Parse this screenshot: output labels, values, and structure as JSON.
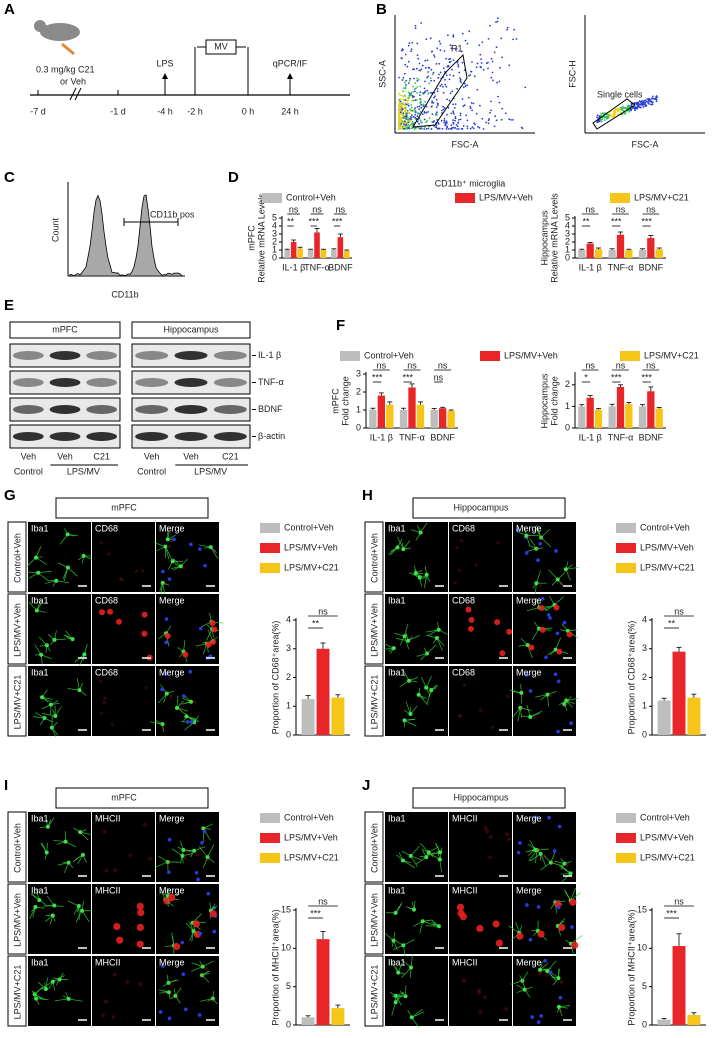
{
  "panel_labels": [
    "A",
    "B",
    "C",
    "D",
    "E",
    "F",
    "G",
    "H",
    "I",
    "J"
  ],
  "panel_a": {
    "dose": [
      "0.3 mg/kg C21",
      "or Veh"
    ],
    "lps": "LPS",
    "mv": "MV",
    "readout": "qPCR/IF",
    "times": [
      "-7 d",
      "-1 d",
      "-4 h",
      "-2 h",
      "0 h",
      "24 h"
    ]
  },
  "panel_b": {
    "plots": [
      {
        "ylabel": "SSC-A",
        "xlabel": "FSC-A",
        "gate": "R1"
      },
      {
        "ylabel": "FSC-H",
        "xlabel": "FSC-A",
        "gate": "Single cells"
      }
    ]
  },
  "panel_c": {
    "ylabel": "Count",
    "xlabel": "CD11b",
    "gate": "CD11b pos"
  },
  "panel_e": {
    "regions": [
      "mPFC",
      "Hippocampus"
    ],
    "proteins": [
      "IL-1 β",
      "TNF-α",
      "BDNF",
      "β-actin"
    ],
    "lanes": [
      "Veh",
      "Veh",
      "C21"
    ],
    "groups": [
      "Control",
      "LPS/MV"
    ]
  },
  "image_panels": [
    {
      "title": "mPFC",
      "rows": [
        "Control+Veh",
        "LPS/MV+Veh",
        "LPS/MV+C21"
      ],
      "channels": [
        "Iba1",
        "CD68",
        "Merge"
      ]
    },
    {
      "title": "Hippocampus",
      "rows": [
        "Control+Veh",
        "LPS/MV+Veh",
        "LPS/MV+C21"
      ],
      "channels": [
        "Iba1",
        "CD68",
        "Merge"
      ]
    },
    {
      "title": "mPFC",
      "rows": [
        "Control+Veh",
        "LPS/MV+Veh",
        "LPS/MV+C21"
      ],
      "channels": [
        "Iba1",
        "MHCII",
        "Merge"
      ]
    },
    {
      "title": "Hippocampus",
      "rows": [
        "Control+Veh",
        "LPS/MV+Veh",
        "LPS/MV+C21"
      ],
      "channels": [
        "Iba1",
        "MHCII",
        "Merge"
      ]
    }
  ],
  "chart_data": [
    {
      "type": "bar",
      "title": "CD11b⁺ microglia",
      "ylabel": [
        "mPFC",
        "Relative mRNA Levels"
      ],
      "categories": [
        "IL-1 β",
        "TNF-α",
        "BDNF"
      ],
      "series": [
        {
          "name": "Control+Veh",
          "color": "#bdbdbd",
          "values": [
            1,
            1,
            1
          ],
          "errors": [
            0.1,
            0.1,
            0.15
          ]
        },
        {
          "name": "LPS/MV+Veh",
          "color": "#e8262a",
          "values": [
            2.0,
            3.2,
            2.6
          ],
          "errors": [
            0.25,
            0.5,
            0.4
          ]
        },
        {
          "name": "LPS/MV+C21",
          "color": "#f5c518",
          "values": [
            1.2,
            1.0,
            0.9
          ],
          "errors": [
            0.15,
            0.1,
            0.1
          ]
        }
      ],
      "ylim": [
        0,
        5
      ],
      "yticks": [
        0,
        1,
        2,
        3,
        4,
        5
      ],
      "significance": [
        [
          "ns",
          "**"
        ],
        [
          "ns",
          "***"
        ],
        [
          "ns",
          "***"
        ]
      ]
    },
    {
      "type": "bar",
      "ylabel": [
        "Hippocampus",
        "Relative mRNA Levels"
      ],
      "categories": [
        "IL-1 β",
        "TNF-α",
        "BDNF"
      ],
      "series": [
        {
          "name": "Control+Veh",
          "color": "#bdbdbd",
          "values": [
            1,
            1,
            1
          ],
          "errors": [
            0.1,
            0.15,
            0.15
          ]
        },
        {
          "name": "LPS/MV+Veh",
          "color": "#e8262a",
          "values": [
            1.8,
            2.9,
            2.5
          ],
          "errors": [
            0.15,
            0.35,
            0.3
          ]
        },
        {
          "name": "LPS/MV+C21",
          "color": "#f5c518",
          "values": [
            1.1,
            1.0,
            1.1
          ],
          "errors": [
            0.15,
            0.1,
            0.15
          ]
        }
      ],
      "ylim": [
        0,
        5
      ],
      "yticks": [
        0,
        1,
        2,
        3,
        4,
        5
      ],
      "significance": [
        [
          "ns",
          "**"
        ],
        [
          "ns",
          "***"
        ],
        [
          "ns",
          "***"
        ]
      ]
    },
    {
      "type": "bar",
      "ylabel": [
        "mPFC",
        "Fold change"
      ],
      "categories": [
        "IL-1 β",
        "TNF-α",
        "BDNF"
      ],
      "series": [
        {
          "name": "Control+Veh",
          "color": "#bdbdbd",
          "values": [
            1,
            1,
            1
          ],
          "errors": [
            0.1,
            0.1,
            0.08
          ]
        },
        {
          "name": "LPS/MV+Veh",
          "color": "#e8262a",
          "values": [
            1.8,
            2.25,
            1.1
          ],
          "errors": [
            0.15,
            0.2,
            0.05
          ]
        },
        {
          "name": "LPS/MV+C21",
          "color": "#f5c518",
          "values": [
            1.3,
            1.3,
            0.95
          ],
          "errors": [
            0.15,
            0.15,
            0.05
          ]
        }
      ],
      "ylim": [
        0,
        3
      ],
      "yticks": [
        0,
        1,
        2,
        3
      ],
      "significance": [
        [
          "ns",
          "***"
        ],
        [
          "ns",
          "***"
        ],
        [
          "ns",
          "ns"
        ]
      ]
    },
    {
      "type": "bar",
      "ylabel": [
        "Hippocampus",
        "Fold change"
      ],
      "categories": [
        "IL-1 β",
        "TNF-α",
        "BDNF"
      ],
      "series": [
        {
          "name": "Control+Veh",
          "color": "#bdbdbd",
          "values": [
            1,
            1,
            1
          ],
          "errors": [
            0.08,
            0.1,
            0.08
          ]
        },
        {
          "name": "LPS/MV+Veh",
          "color": "#e8262a",
          "values": [
            1.4,
            1.9,
            1.7
          ],
          "errors": [
            0.1,
            0.1,
            0.2
          ]
        },
        {
          "name": "LPS/MV+C21",
          "color": "#f5c518",
          "values": [
            0.85,
            1.1,
            0.9
          ],
          "errors": [
            0.05,
            0.08,
            0.05
          ]
        }
      ],
      "ylim": [
        0,
        2.5
      ],
      "yticks": [
        0,
        1,
        2
      ],
      "significance": [
        [
          "ns",
          "*"
        ],
        [
          "ns",
          "***"
        ],
        [
          "ns",
          "***"
        ]
      ]
    },
    {
      "type": "bar",
      "ylabel": [
        "Proportion of CD68⁺area(%)"
      ],
      "categories": [
        null
      ],
      "series": [
        {
          "name": "Control+Veh",
          "color": "#bdbdbd",
          "values": [
            1.25
          ],
          "errors": [
            0.12
          ]
        },
        {
          "name": "LPS/MV+Veh",
          "color": "#e8262a",
          "values": [
            3.0
          ],
          "errors": [
            0.2
          ]
        },
        {
          "name": "LPS/MV+C21",
          "color": "#f5c518",
          "values": [
            1.3
          ],
          "errors": [
            0.1
          ]
        }
      ],
      "ylim": [
        0,
        4
      ],
      "yticks": [
        0,
        1,
        2,
        3,
        4
      ],
      "significance": [
        [
          "ns",
          "**"
        ]
      ]
    },
    {
      "type": "bar",
      "ylabel": [
        "Proportion of CD68⁺area(%)"
      ],
      "categories": [
        null
      ],
      "series": [
        {
          "name": "Control+Veh",
          "color": "#bdbdbd",
          "values": [
            1.2
          ],
          "errors": [
            0.08
          ]
        },
        {
          "name": "LPS/MV+Veh",
          "color": "#e8262a",
          "values": [
            2.9
          ],
          "errors": [
            0.15
          ]
        },
        {
          "name": "LPS/MV+C21",
          "color": "#f5c518",
          "values": [
            1.3
          ],
          "errors": [
            0.12
          ]
        }
      ],
      "ylim": [
        0,
        4
      ],
      "yticks": [
        0,
        1,
        2,
        3,
        4
      ],
      "significance": [
        [
          "ns",
          "**"
        ]
      ]
    },
    {
      "type": "bar",
      "ylabel": [
        "Proportion of MHCII⁺area(%)"
      ],
      "categories": [
        null
      ],
      "series": [
        {
          "name": "Control+Veh",
          "color": "#bdbdbd",
          "values": [
            1.0
          ],
          "errors": [
            0.2
          ]
        },
        {
          "name": "LPS/MV+Veh",
          "color": "#e8262a",
          "values": [
            11.2
          ],
          "errors": [
            1.0
          ]
        },
        {
          "name": "LPS/MV+C21",
          "color": "#f5c518",
          "values": [
            2.2
          ],
          "errors": [
            0.4
          ]
        }
      ],
      "ylim": [
        0,
        15
      ],
      "yticks": [
        0,
        5,
        10,
        15
      ],
      "significance": [
        [
          "ns",
          "***"
        ]
      ]
    },
    {
      "type": "bar",
      "ylabel": [
        "Proportion of MHCII⁺area(%)"
      ],
      "categories": [
        null
      ],
      "series": [
        {
          "name": "Control+Veh",
          "color": "#bdbdbd",
          "values": [
            0.7
          ],
          "errors": [
            0.15
          ]
        },
        {
          "name": "LPS/MV+Veh",
          "color": "#e8262a",
          "values": [
            10.3
          ],
          "errors": [
            1.6
          ]
        },
        {
          "name": "LPS/MV+C21",
          "color": "#f5c518",
          "values": [
            1.3
          ],
          "errors": [
            0.3
          ]
        }
      ],
      "ylim": [
        0,
        15
      ],
      "yticks": [
        0,
        5,
        10,
        15
      ],
      "significance": [
        [
          "ns",
          "***"
        ]
      ]
    }
  ]
}
